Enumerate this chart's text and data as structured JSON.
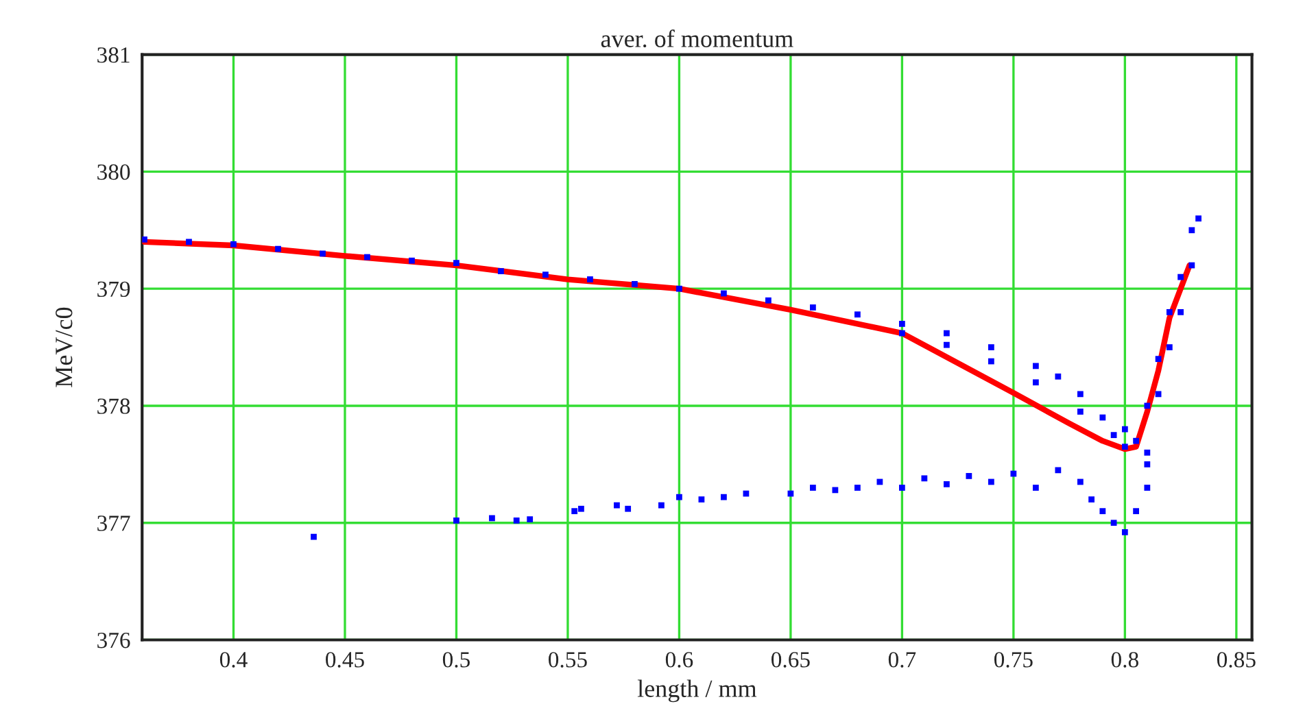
{
  "chart_data": {
    "type": "scatter",
    "title": "aver. of momentum",
    "xlabel": "length / mm",
    "ylabel": "MeV/c0",
    "xlim": [
      0.359,
      0.857
    ],
    "ylim": [
      376,
      381
    ],
    "xticks": [
      0.4,
      0.45,
      0.5,
      0.55,
      0.6,
      0.65,
      0.7,
      0.75,
      0.8,
      0.85
    ],
    "yticks": [
      376,
      377,
      378,
      379,
      380,
      381
    ],
    "grid": true,
    "legend": false,
    "series": [
      {
        "type": "scatter",
        "marker": "square",
        "color": "#0000ff",
        "x": [
          0.36,
          0.38,
          0.4,
          0.42,
          0.44,
          0.46,
          0.48,
          0.5,
          0.52,
          0.54,
          0.56,
          0.58,
          0.6,
          0.62,
          0.64,
          0.66,
          0.68,
          0.7,
          0.7,
          0.72,
          0.72,
          0.74,
          0.74,
          0.76,
          0.76,
          0.77,
          0.78,
          0.78,
          0.79,
          0.795,
          0.8,
          0.8,
          0.805,
          0.81,
          0.81,
          0.815,
          0.815,
          0.82,
          0.82,
          0.825,
          0.825,
          0.83,
          0.83,
          0.833,
          0.436,
          0.5,
          0.516,
          0.527,
          0.533,
          0.553,
          0.556,
          0.572,
          0.577,
          0.592,
          0.6,
          0.61,
          0.62,
          0.63,
          0.65,
          0.66,
          0.67,
          0.68,
          0.69,
          0.7,
          0.71,
          0.72,
          0.73,
          0.74,
          0.75,
          0.76,
          0.77,
          0.78,
          0.785,
          0.79,
          0.795,
          0.8,
          0.805,
          0.81,
          0.81
        ],
        "values": [
          379.42,
          379.4,
          379.38,
          379.34,
          379.3,
          379.27,
          379.24,
          379.22,
          379.15,
          379.12,
          379.08,
          379.04,
          379.0,
          378.96,
          378.9,
          378.84,
          378.78,
          378.7,
          378.62,
          378.62,
          378.52,
          378.5,
          378.38,
          378.34,
          378.2,
          378.25,
          378.1,
          377.95,
          377.9,
          377.75,
          377.8,
          377.65,
          377.7,
          378.0,
          377.6,
          378.4,
          378.1,
          378.8,
          378.5,
          379.1,
          378.8,
          379.5,
          379.2,
          379.6,
          376.88,
          377.02,
          377.04,
          377.02,
          377.03,
          377.1,
          377.12,
          377.15,
          377.12,
          377.15,
          377.22,
          377.2,
          377.22,
          377.25,
          377.25,
          377.3,
          377.28,
          377.3,
          377.35,
          377.3,
          377.38,
          377.33,
          377.4,
          377.35,
          377.42,
          377.3,
          377.45,
          377.35,
          377.2,
          377.1,
          377.0,
          376.92,
          377.1,
          377.3,
          377.5
        ]
      },
      {
        "type": "line",
        "color": "#ff0000",
        "x": [
          0.36,
          0.4,
          0.45,
          0.5,
          0.55,
          0.6,
          0.65,
          0.7,
          0.75,
          0.775,
          0.79,
          0.8,
          0.805,
          0.81,
          0.815,
          0.82,
          0.829
        ],
        "values": [
          379.4,
          379.37,
          379.28,
          379.2,
          379.08,
          379.0,
          378.82,
          378.62,
          378.11,
          377.85,
          377.7,
          377.63,
          377.65,
          377.95,
          378.3,
          378.75,
          379.2
        ]
      }
    ]
  }
}
